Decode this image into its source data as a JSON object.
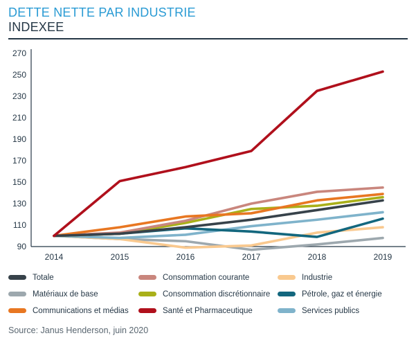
{
  "header": {
    "title_line1": "DETTE NETTE PAR INDUSTRIE",
    "title_line2": "INDEXEE"
  },
  "source": "Source: Janus Henderson, juin 2020",
  "colors": {
    "title_accent": "#2A9BD4",
    "text_dark": "#253746",
    "axis": "#253746",
    "source_text": "#5A6771"
  },
  "chart_data": {
    "type": "line",
    "title": "DETTE NETTE PAR INDUSTRIE",
    "subtitle": "INDEXEE",
    "x": [
      "2014",
      "2015",
      "2016",
      "2017",
      "2018",
      "2019"
    ],
    "ylim": [
      90,
      270
    ],
    "ytick_step": 20,
    "grid": false,
    "legend_position": "bottom",
    "series": [
      {
        "name": "Totale",
        "color": "#37424A",
        "values": [
          100,
          102,
          108,
          115,
          124,
          133
        ]
      },
      {
        "name": "Consommation courante",
        "color": "#C9867D",
        "values": [
          100,
          103,
          114,
          130,
          141,
          145
        ]
      },
      {
        "name": "Industrie",
        "color": "#F9C98F",
        "values": [
          100,
          97,
          89,
          91,
          103,
          108
        ]
      },
      {
        "name": "Matériaux de base",
        "color": "#9DA8AE",
        "values": [
          100,
          97,
          95,
          87,
          92,
          98
        ]
      },
      {
        "name": "Consommation discrétionnaire",
        "color": "#A9B019",
        "values": [
          100,
          102,
          112,
          125,
          128,
          136
        ]
      },
      {
        "name": "Pétrole, gaz et énergie",
        "color": "#13677E",
        "values": [
          100,
          102,
          107,
          104,
          99,
          116
        ]
      },
      {
        "name": "Communications et médias",
        "color": "#E87722",
        "values": [
          100,
          108,
          118,
          121,
          133,
          139
        ]
      },
      {
        "name": "Santé et Pharmaceutique",
        "color": "#B0101C",
        "values": [
          100,
          151,
          164,
          179,
          235,
          253
        ]
      },
      {
        "name": "Services publics",
        "color": "#7FB3CB",
        "values": [
          100,
          98,
          101,
          109,
          115,
          122
        ]
      }
    ],
    "z_order": [
      "Matériaux de base",
      "Industrie",
      "Services publics",
      "Pétrole, gaz et énergie",
      "Consommation discrétionnaire",
      "Consommation courante",
      "Communications et médias",
      "Totale",
      "Santé et Pharmaceutique"
    ]
  }
}
